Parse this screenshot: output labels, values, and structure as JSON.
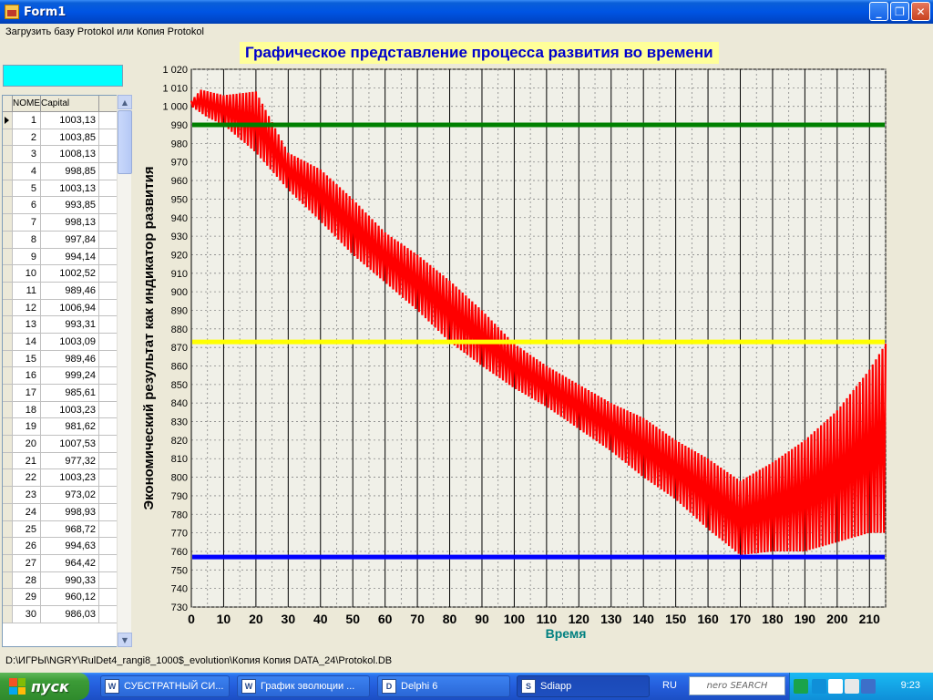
{
  "window": {
    "title": "Form1"
  },
  "menu": {
    "load_label": "Загрузить базу Protokol или Копия Protokol"
  },
  "grid": {
    "columns": [
      "NOMER",
      "Capital"
    ],
    "rows": [
      [
        "1",
        "1003,13"
      ],
      [
        "2",
        "1003,85"
      ],
      [
        "3",
        "1008,13"
      ],
      [
        "4",
        "998,85"
      ],
      [
        "5",
        "1003,13"
      ],
      [
        "6",
        "993,85"
      ],
      [
        "7",
        "998,13"
      ],
      [
        "8",
        "997,84"
      ],
      [
        "9",
        "994,14"
      ],
      [
        "10",
        "1002,52"
      ],
      [
        "11",
        "989,46"
      ],
      [
        "12",
        "1006,94"
      ],
      [
        "13",
        "993,31"
      ],
      [
        "14",
        "1003,09"
      ],
      [
        "15",
        "989,46"
      ],
      [
        "16",
        "999,24"
      ],
      [
        "17",
        "985,61"
      ],
      [
        "18",
        "1003,23"
      ],
      [
        "19",
        "981,62"
      ],
      [
        "20",
        "1007,53"
      ],
      [
        "21",
        "977,32"
      ],
      [
        "22",
        "1003,23"
      ],
      [
        "23",
        "973,02"
      ],
      [
        "24",
        "998,93"
      ],
      [
        "25",
        "968,72"
      ],
      [
        "26",
        "994,63"
      ],
      [
        "27",
        "964,42"
      ],
      [
        "28",
        "990,33"
      ],
      [
        "29",
        "960,12"
      ],
      [
        "30",
        "986,03"
      ]
    ]
  },
  "chart_title": "Графическое представление процесса развития во времени",
  "chart_data": {
    "type": "line",
    "title": "Графическое представление процесса развития во времени",
    "xlabel": "Время",
    "ylabel": "Экономический результат как индикатор развития",
    "xlim": [
      0,
      215
    ],
    "ylim": [
      730,
      1020
    ],
    "x_ticks": [
      0,
      10,
      20,
      30,
      40,
      50,
      60,
      70,
      80,
      90,
      100,
      110,
      120,
      130,
      140,
      150,
      160,
      170,
      180,
      190,
      200,
      210
    ],
    "y_ticks": [
      730,
      740,
      750,
      760,
      770,
      780,
      790,
      800,
      810,
      820,
      830,
      840,
      850,
      860,
      870,
      880,
      890,
      900,
      910,
      920,
      930,
      940,
      950,
      960,
      970,
      980,
      990,
      1000,
      1010,
      1020
    ],
    "y_tick_labels": [
      "730",
      "740",
      "750",
      "760",
      "770",
      "780",
      "790",
      "800",
      "810",
      "820",
      "830",
      "840",
      "850",
      "860",
      "870",
      "880",
      "890",
      "900",
      "910",
      "920",
      "930",
      "940",
      "950",
      "960",
      "970",
      "980",
      "990",
      "1 000",
      "1 010",
      "1 020"
    ],
    "hlines": [
      {
        "value": 990,
        "color": "#008000"
      },
      {
        "value": 873,
        "color": "#ffff00"
      },
      {
        "value": 757,
        "color": "#0000ff"
      }
    ],
    "series": [
      {
        "color": "#ff0000",
        "envelope_upper": [
          [
            0,
            1003
          ],
          [
            3,
            1009
          ],
          [
            10,
            1006
          ],
          [
            20,
            1008
          ],
          [
            30,
            975
          ],
          [
            40,
            966
          ],
          [
            50,
            950
          ],
          [
            60,
            932
          ],
          [
            70,
            920
          ],
          [
            80,
            906
          ],
          [
            90,
            890
          ],
          [
            100,
            872
          ],
          [
            110,
            860
          ],
          [
            120,
            850
          ],
          [
            130,
            840
          ],
          [
            140,
            832
          ],
          [
            150,
            820
          ],
          [
            160,
            810
          ],
          [
            170,
            798
          ],
          [
            180,
            808
          ],
          [
            190,
            820
          ],
          [
            200,
            836
          ],
          [
            210,
            858
          ],
          [
            215,
            872
          ]
        ],
        "envelope_lower": [
          [
            0,
            1000
          ],
          [
            5,
            994
          ],
          [
            10,
            990
          ],
          [
            20,
            975
          ],
          [
            30,
            955
          ],
          [
            40,
            938
          ],
          [
            50,
            920
          ],
          [
            60,
            905
          ],
          [
            70,
            890
          ],
          [
            80,
            873
          ],
          [
            90,
            860
          ],
          [
            100,
            848
          ],
          [
            110,
            838
          ],
          [
            120,
            826
          ],
          [
            130,
            814
          ],
          [
            140,
            800
          ],
          [
            150,
            788
          ],
          [
            160,
            772
          ],
          [
            170,
            758
          ],
          [
            180,
            760
          ],
          [
            190,
            760
          ],
          [
            200,
            765
          ],
          [
            210,
            770
          ],
          [
            215,
            770
          ]
        ]
      }
    ]
  },
  "status": {
    "path": "D:\\ИГРЫ\\NGRY\\RulDet4_rangi8_1000$_evolution\\Копия Копия DATA_24\\Protokol.DB"
  },
  "taskbar": {
    "start_label": "пуск",
    "tasks": [
      {
        "label": "СУБСТРАТНЫЙ СИ...",
        "icon": "W"
      },
      {
        "label": "График эволюции ...",
        "icon": "W"
      },
      {
        "label": "Delphi 6",
        "icon": "D"
      },
      {
        "label": "Sdiapp",
        "icon": "S"
      }
    ],
    "lang": "RU",
    "nero": "nero SEARCH",
    "clock": "9:23"
  }
}
